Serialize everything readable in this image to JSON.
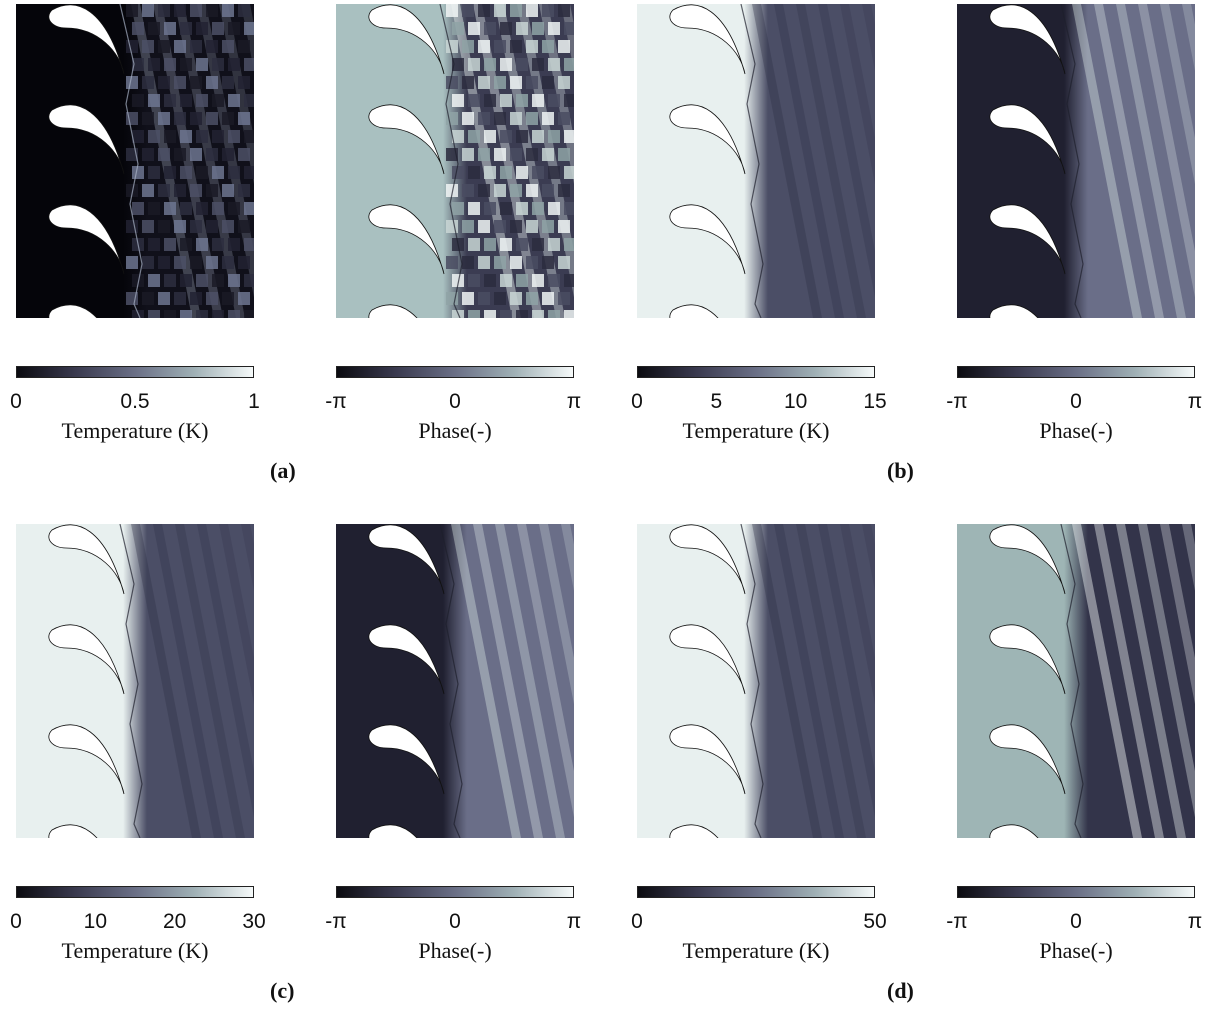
{
  "figure": {
    "rows": [
      {
        "label": "(a)",
        "panels": [
          {
            "kind": "temperature",
            "style": "dark",
            "colorbar": {
              "ticks": [
                "0",
                "0.5",
                "1"
              ],
              "label": "Temperature (K)"
            }
          },
          {
            "kind": "phase",
            "style": "phase-noisy",
            "colorbar": {
              "ticks": [
                "-π",
                "0",
                "π"
              ],
              "label": "Phase(-)"
            }
          }
        ]
      },
      {
        "label": "(b)",
        "panels": [
          {
            "kind": "temperature",
            "style": "light",
            "colorbar": {
              "ticks": [
                "0",
                "5",
                "10",
                "15"
              ],
              "label": "Temperature (K)"
            }
          },
          {
            "kind": "phase",
            "style": "phase-smooth",
            "colorbar": {
              "ticks": [
                "-π",
                "0",
                "π"
              ],
              "label": "Phase(-)"
            }
          }
        ]
      },
      {
        "label": "(c)",
        "panels": [
          {
            "kind": "temperature",
            "style": "light",
            "colorbar": {
              "ticks": [
                "0",
                "10",
                "20",
                "30"
              ],
              "label": "Temperature (K)"
            }
          },
          {
            "kind": "phase",
            "style": "phase-smooth",
            "colorbar": {
              "ticks": [
                "-π",
                "0",
                "π"
              ],
              "label": "Phase(-)"
            }
          }
        ]
      },
      {
        "label": "(d)",
        "panels": [
          {
            "kind": "temperature",
            "style": "light",
            "colorbar": {
              "ticks": [
                "0",
                "50"
              ],
              "label": "Temperature (K)"
            }
          },
          {
            "kind": "phase",
            "style": "phase-dark",
            "colorbar": {
              "ticks": [
                "-π",
                "0",
                "π"
              ],
              "label": "Phase(-)"
            }
          }
        ]
      }
    ],
    "colormap": [
      "#0b0b10",
      "#3a3a4f",
      "#6a6f86",
      "#9fb0b5",
      "#f6fafa"
    ]
  }
}
